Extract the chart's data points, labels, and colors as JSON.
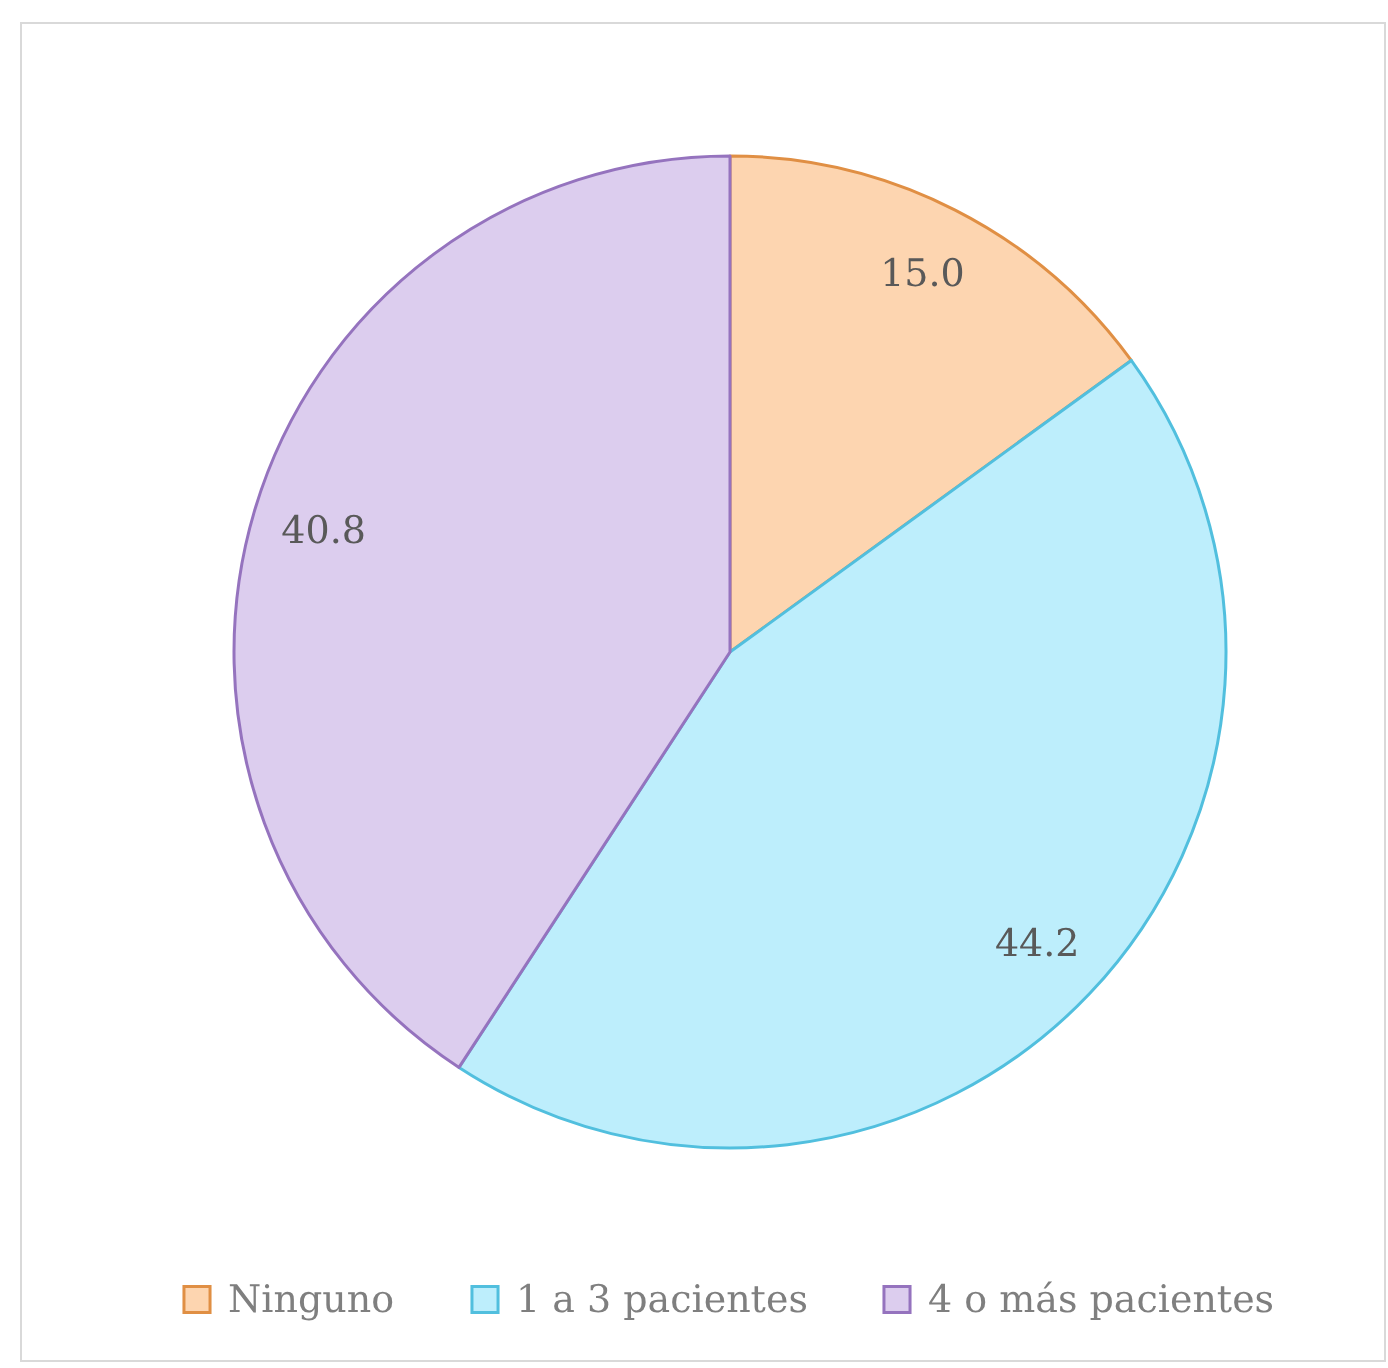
{
  "chart_data": {
    "type": "pie",
    "categories": [
      "Ninguno",
      "1 a 3 pacientes",
      "4 o más pacientes"
    ],
    "values": [
      15.0,
      44.2,
      40.8
    ],
    "value_labels": [
      "15.0",
      "44.2",
      "40.8"
    ],
    "colors": [
      "#fdd5b0",
      "#bdeefc",
      "#dccdee"
    ],
    "legend": "bottom"
  }
}
